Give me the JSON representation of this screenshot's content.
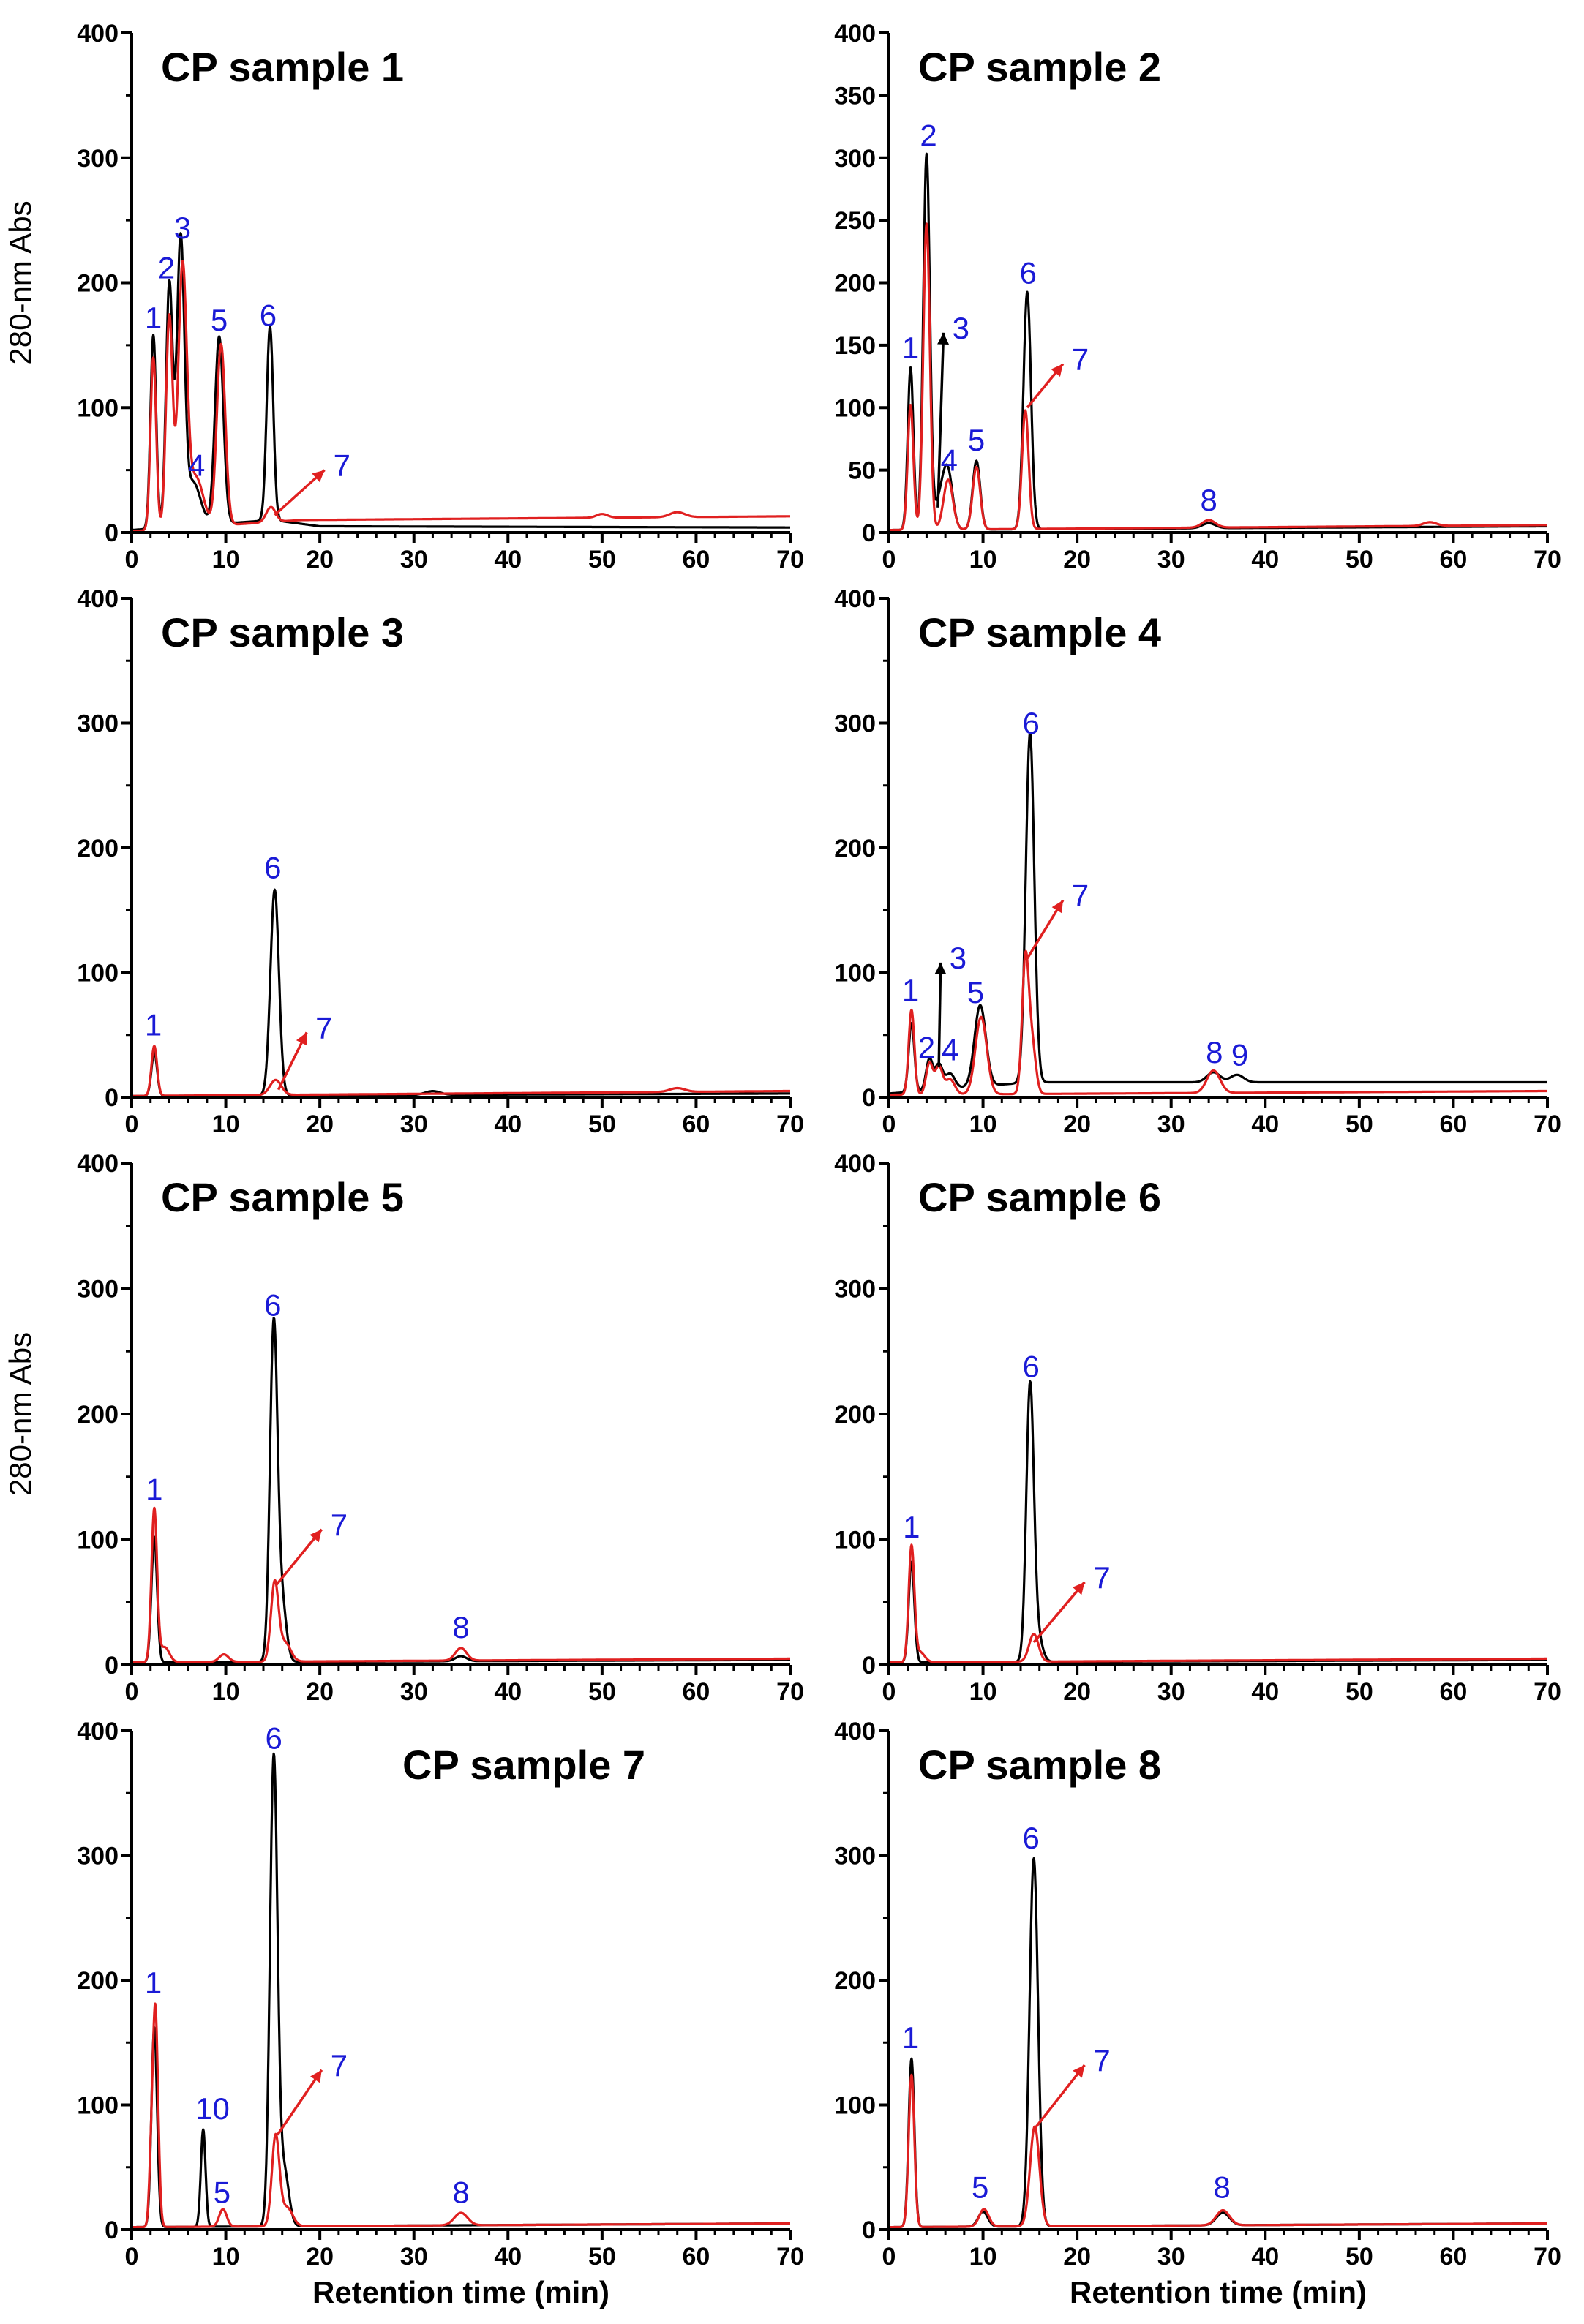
{
  "colors": {
    "black_trace": "#000000",
    "red_trace": "#e02020",
    "peak_label": "#1a1ad6"
  },
  "chart_data": [
    {
      "type": "line",
      "title": "CP sample 1",
      "xlabel": "",
      "ylabel": "280-nm Abs",
      "xlim": [
        0,
        70
      ],
      "ylim": [
        0,
        400
      ],
      "x_ticks": [
        0,
        10,
        20,
        30,
        40,
        50,
        60,
        70
      ],
      "y_ticks": [
        0,
        100,
        200,
        300,
        400
      ],
      "baseline": {
        "black": [
          [
            0,
            2
          ],
          [
            15,
            10
          ],
          [
            20,
            5
          ],
          [
            70,
            4
          ]
        ],
        "red": [
          [
            0,
            1
          ],
          [
            18,
            10
          ],
          [
            70,
            13
          ]
        ]
      },
      "peaks": {
        "black": [
          [
            2.3,
            155,
            0.3
          ],
          [
            4.0,
            195,
            0.35
          ],
          [
            5.2,
            225,
            0.4
          ],
          [
            6.5,
            35,
            0.8
          ],
          [
            9.3,
            150,
            0.45
          ],
          [
            14.7,
            155,
            0.35
          ]
        ],
        "red": [
          [
            2.3,
            138,
            0.3
          ],
          [
            4.0,
            170,
            0.35
          ],
          [
            5.4,
            205,
            0.45
          ],
          [
            6.8,
            40,
            0.8
          ],
          [
            9.5,
            145,
            0.45
          ],
          [
            14.8,
            12,
            0.5
          ],
          [
            50,
            3,
            0.6
          ],
          [
            58,
            4,
            0.8
          ]
        ]
      },
      "labels": [
        {
          "text": "1",
          "x": 2.3,
          "y": 160
        },
        {
          "text": "2",
          "x": 3.7,
          "y": 200
        },
        {
          "text": "3",
          "x": 5.4,
          "y": 232
        },
        {
          "text": "4",
          "x": 6.9,
          "y": 42
        },
        {
          "text": "5",
          "x": 9.3,
          "y": 158
        },
        {
          "text": "6",
          "x": 14.5,
          "y": 162
        }
      ],
      "arrows": [
        {
          "text": "7",
          "from": [
            15.2,
            14
          ],
          "to": [
            20.5,
            50
          ],
          "color": "red"
        }
      ]
    },
    {
      "type": "line",
      "title": "CP sample 2",
      "xlabel": "",
      "ylabel": "",
      "xlim": [
        0,
        70
      ],
      "ylim": [
        0,
        400
      ],
      "x_ticks": [
        0,
        10,
        20,
        30,
        40,
        50,
        60,
        70
      ],
      "y_ticks": [
        0,
        50,
        100,
        150,
        200,
        250,
        300,
        350,
        400
      ],
      "baseline": {
        "black": [
          [
            0,
            2
          ],
          [
            70,
            5
          ]
        ],
        "red": [
          [
            0,
            2
          ],
          [
            70,
            6
          ]
        ]
      },
      "peaks": {
        "black": [
          [
            2.3,
            130,
            0.3
          ],
          [
            4.0,
            300,
            0.35
          ],
          [
            5.5,
            25,
            0.6
          ],
          [
            6.3,
            40,
            0.5
          ],
          [
            9.3,
            55,
            0.4
          ],
          [
            14.7,
            190,
            0.4
          ],
          [
            34,
            4,
            0.7
          ]
        ],
        "red": [
          [
            2.3,
            100,
            0.3
          ],
          [
            4.0,
            245,
            0.35
          ],
          [
            6.3,
            40,
            0.5
          ],
          [
            9.3,
            50,
            0.4
          ],
          [
            14.5,
            95,
            0.35
          ],
          [
            34,
            6,
            0.7
          ],
          [
            57.5,
            3,
            0.7
          ]
        ]
      },
      "labels": [
        {
          "text": "1",
          "x": 2.3,
          "y": 136
        },
        {
          "text": "2",
          "x": 4.2,
          "y": 306
        },
        {
          "text": "4",
          "x": 6.4,
          "y": 46
        },
        {
          "text": "5",
          "x": 9.3,
          "y": 62
        },
        {
          "text": "6",
          "x": 14.8,
          "y": 196
        },
        {
          "text": "8",
          "x": 34,
          "y": 14
        }
      ],
      "arrows": [
        {
          "text": "3",
          "from": [
            5.2,
            20
          ],
          "to": [
            5.8,
            160
          ],
          "color": "black"
        },
        {
          "text": "7",
          "from": [
            14.7,
            100
          ],
          "to": [
            18.5,
            135
          ],
          "color": "red"
        }
      ]
    },
    {
      "type": "line",
      "title": "CP sample 3",
      "xlabel": "",
      "ylabel": "",
      "xlim": [
        0,
        70
      ],
      "ylim": [
        0,
        400
      ],
      "x_ticks": [
        0,
        10,
        20,
        30,
        40,
        50,
        60,
        70
      ],
      "y_ticks": [
        0,
        100,
        200,
        300,
        400
      ],
      "baseline": {
        "black": [
          [
            0,
            1
          ],
          [
            70,
            3
          ]
        ],
        "red": [
          [
            0,
            1
          ],
          [
            70,
            5
          ]
        ]
      },
      "peaks": {
        "black": [
          [
            2.4,
            35,
            0.3
          ],
          [
            15.2,
            165,
            0.45
          ],
          [
            32,
            3,
            0.8
          ]
        ],
        "red": [
          [
            2.4,
            40,
            0.3
          ],
          [
            15.3,
            12,
            0.6
          ],
          [
            58,
            3,
            0.8
          ]
        ]
      },
      "labels": [
        {
          "text": "1",
          "x": 2.3,
          "y": 46
        },
        {
          "text": "6",
          "x": 15,
          "y": 172
        }
      ],
      "arrows": [
        {
          "text": "7",
          "from": [
            15.6,
            6
          ],
          "to": [
            18.6,
            52
          ],
          "color": "red"
        }
      ]
    },
    {
      "type": "line",
      "title": "CP sample 4",
      "xlabel": "",
      "ylabel": "",
      "xlim": [
        0,
        70
      ],
      "ylim": [
        0,
        400
      ],
      "x_ticks": [
        0,
        10,
        20,
        30,
        40,
        50,
        60,
        70
      ],
      "y_ticks": [
        0,
        100,
        200,
        300,
        400
      ],
      "baseline": {
        "black": [
          [
            0,
            3
          ],
          [
            15,
            12
          ],
          [
            70,
            12
          ]
        ],
        "red": [
          [
            0,
            2
          ],
          [
            70,
            5
          ]
        ]
      },
      "peaks": {
        "black": [
          [
            2.4,
            55,
            0.3
          ],
          [
            4.3,
            25,
            0.35
          ],
          [
            5.3,
            20,
            0.4
          ],
          [
            6.5,
            12,
            0.5
          ],
          [
            9.7,
            65,
            0.6
          ],
          [
            15.0,
            280,
            0.45
          ],
          [
            34.5,
            8,
            0.7
          ],
          [
            37,
            6,
            0.7
          ]
        ],
        "red": [
          [
            2.4,
            68,
            0.3
          ],
          [
            4.3,
            25,
            0.35
          ],
          [
            5.3,
            22,
            0.4
          ],
          [
            6.5,
            12,
            0.5
          ],
          [
            9.8,
            62,
            0.6
          ],
          [
            14.5,
            105,
            0.35
          ],
          [
            15.2,
            40,
            0.4
          ],
          [
            34.5,
            18,
            0.7
          ]
        ]
      },
      "labels": [
        {
          "text": "1",
          "x": 2.3,
          "y": 74
        },
        {
          "text": "2",
          "x": 4,
          "y": 28
        },
        {
          "text": "4",
          "x": 6.5,
          "y": 26
        },
        {
          "text": "5",
          "x": 9.2,
          "y": 72
        },
        {
          "text": "6",
          "x": 15.1,
          "y": 288
        },
        {
          "text": "8",
          "x": 34.6,
          "y": 24
        },
        {
          "text": "9",
          "x": 37.3,
          "y": 22
        }
      ],
      "arrows": [
        {
          "text": "3",
          "from": [
            5.3,
            24
          ],
          "to": [
            5.5,
            108
          ],
          "color": "black"
        },
        {
          "text": "7",
          "from": [
            14.6,
            110
          ],
          "to": [
            18.5,
            158
          ],
          "color": "red"
        }
      ]
    },
    {
      "type": "line",
      "title": "CP sample 5",
      "xlabel": "",
      "ylabel": "280-nm Abs",
      "xlim": [
        0,
        70
      ],
      "ylim": [
        0,
        400
      ],
      "x_ticks": [
        0,
        10,
        20,
        30,
        40,
        50,
        60,
        70
      ],
      "y_ticks": [
        0,
        100,
        200,
        300,
        400
      ],
      "baseline": {
        "black": [
          [
            0,
            2
          ],
          [
            70,
            4
          ]
        ],
        "red": [
          [
            0,
            2
          ],
          [
            70,
            5
          ]
        ]
      },
      "peaks": {
        "black": [
          [
            2.4,
            100,
            0.3
          ],
          [
            15.1,
            268,
            0.4
          ],
          [
            16.0,
            45,
            0.45
          ],
          [
            35,
            4,
            0.6
          ]
        ],
        "red": [
          [
            2.4,
            122,
            0.3
          ],
          [
            3.5,
            12,
            0.5
          ],
          [
            9.8,
            6,
            0.5
          ],
          [
            15.2,
            62,
            0.4
          ],
          [
            16.3,
            15,
            0.6
          ],
          [
            35,
            10,
            0.6
          ]
        ]
      },
      "labels": [
        {
          "text": "1",
          "x": 2.4,
          "y": 128
        },
        {
          "text": "6",
          "x": 15,
          "y": 275
        },
        {
          "text": "8",
          "x": 35,
          "y": 18
        }
      ],
      "arrows": [
        {
          "text": "7",
          "from": [
            15.4,
            64
          ],
          "to": [
            20.2,
            108
          ],
          "color": "red"
        }
      ]
    },
    {
      "type": "line",
      "title": "CP sample 6",
      "xlabel": "",
      "ylabel": "",
      "xlim": [
        0,
        70
      ],
      "ylim": [
        0,
        400
      ],
      "x_ticks": [
        0,
        10,
        20,
        30,
        40,
        50,
        60,
        70
      ],
      "y_ticks": [
        0,
        100,
        200,
        300,
        400
      ],
      "baseline": {
        "black": [
          [
            0,
            2
          ],
          [
            70,
            4
          ]
        ],
        "red": [
          [
            0,
            2
          ],
          [
            70,
            5
          ]
        ]
      },
      "peaks": {
        "black": [
          [
            2.4,
            80,
            0.3
          ],
          [
            15.0,
            218,
            0.4
          ],
          [
            15.8,
            20,
            0.5
          ]
        ],
        "red": [
          [
            2.4,
            92,
            0.3
          ],
          [
            3.3,
            8,
            0.5
          ],
          [
            15.4,
            22,
            0.5
          ]
        ]
      },
      "labels": [
        {
          "text": "1",
          "x": 2.4,
          "y": 98
        },
        {
          "text": "6",
          "x": 15.1,
          "y": 226
        }
      ],
      "arrows": [
        {
          "text": "7",
          "from": [
            15.4,
            18
          ],
          "to": [
            20.8,
            66
          ],
          "color": "red"
        }
      ]
    },
    {
      "type": "line",
      "title": "CP sample 7",
      "xlabel": "Retention time (min)",
      "ylabel": "",
      "xlim": [
        0,
        70
      ],
      "ylim": [
        0,
        400
      ],
      "x_ticks": [
        0,
        10,
        20,
        30,
        40,
        50,
        60,
        70
      ],
      "y_ticks": [
        0,
        100,
        200,
        300,
        400
      ],
      "baseline": {
        "black": [
          [
            0,
            2
          ],
          [
            70,
            5
          ]
        ],
        "red": [
          [
            0,
            2
          ],
          [
            70,
            5
          ]
        ]
      },
      "peaks": {
        "black": [
          [
            2.4,
            160,
            0.3
          ],
          [
            7.6,
            78,
            0.25
          ],
          [
            15.1,
            375,
            0.4
          ],
          [
            16.2,
            45,
            0.5
          ]
        ],
        "red": [
          [
            2.0,
            25,
            0.2
          ],
          [
            2.5,
            178,
            0.3
          ],
          [
            9.7,
            14,
            0.4
          ],
          [
            15.3,
            72,
            0.4
          ],
          [
            16.5,
            15,
            0.6
          ],
          [
            35,
            10,
            0.7
          ]
        ]
      },
      "labels": [
        {
          "text": "1",
          "x": 2.3,
          "y": 186
        },
        {
          "text": "10",
          "x": 8.6,
          "y": 85
        },
        {
          "text": "5",
          "x": 9.6,
          "y": 18
        },
        {
          "text": "6",
          "x": 15.1,
          "y": 382
        },
        {
          "text": "8",
          "x": 35,
          "y": 18
        }
      ],
      "arrows": [
        {
          "text": "7",
          "from": [
            15.5,
            76
          ],
          "to": [
            20.2,
            128
          ],
          "color": "red"
        }
      ]
    },
    {
      "type": "line",
      "title": "CP sample 8",
      "xlabel": "Retention time (min)",
      "ylabel": "",
      "xlim": [
        0,
        70
      ],
      "ylim": [
        0,
        400
      ],
      "x_ticks": [
        0,
        10,
        20,
        30,
        40,
        50,
        60,
        70
      ],
      "y_ticks": [
        0,
        100,
        200,
        300,
        400
      ],
      "baseline": {
        "black": [
          [
            0,
            2
          ],
          [
            70,
            5
          ]
        ],
        "red": [
          [
            0,
            2
          ],
          [
            70,
            5
          ]
        ]
      },
      "peaks": {
        "black": [
          [
            2.4,
            135,
            0.3
          ],
          [
            10,
            12,
            0.5
          ],
          [
            15.4,
            295,
            0.45
          ],
          [
            35.5,
            10,
            0.7
          ]
        ],
        "red": [
          [
            2.4,
            122,
            0.3
          ],
          [
            10.1,
            14,
            0.5
          ],
          [
            15.5,
            80,
            0.5
          ],
          [
            35.5,
            12,
            0.7
          ]
        ]
      },
      "labels": [
        {
          "text": "1",
          "x": 2.3,
          "y": 142
        },
        {
          "text": "5",
          "x": 9.7,
          "y": 22
        },
        {
          "text": "6",
          "x": 15.1,
          "y": 302
        },
        {
          "text": "8",
          "x": 35.4,
          "y": 22
        }
      ],
      "arrows": [
        {
          "text": "7",
          "from": [
            15.6,
            82
          ],
          "to": [
            20.8,
            132
          ],
          "color": "red"
        }
      ]
    }
  ]
}
